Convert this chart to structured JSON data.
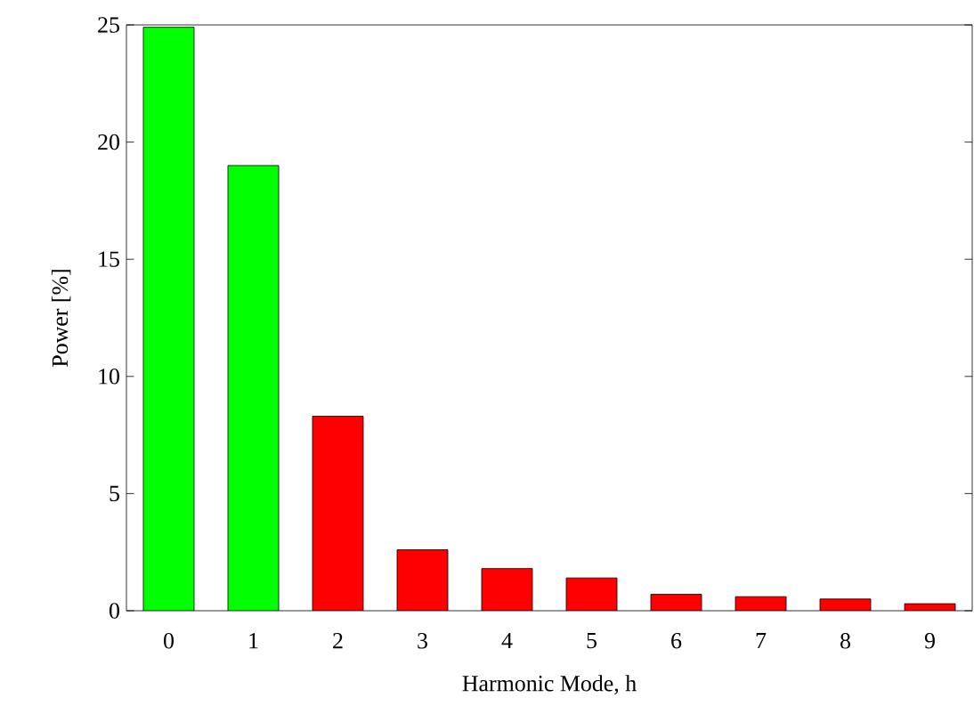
{
  "chart_data": {
    "type": "bar",
    "xlabel": "Harmonic Mode, h",
    "ylabel": "Power   [%]",
    "categories": [
      "0",
      "1",
      "2",
      "3",
      "4",
      "5",
      "6",
      "7",
      "8",
      "9"
    ],
    "values": [
      24.9,
      19.0,
      8.3,
      2.6,
      1.8,
      1.4,
      0.7,
      0.6,
      0.5,
      0.3
    ],
    "colors": [
      "#00ff00",
      "#00ff00",
      "#ff0000",
      "#ff0000",
      "#ff0000",
      "#ff0000",
      "#ff0000",
      "#ff0000",
      "#ff0000",
      "#ff0000"
    ],
    "ylim": [
      0,
      25
    ],
    "yticks": [
      0,
      5,
      10,
      15,
      20,
      25
    ]
  }
}
